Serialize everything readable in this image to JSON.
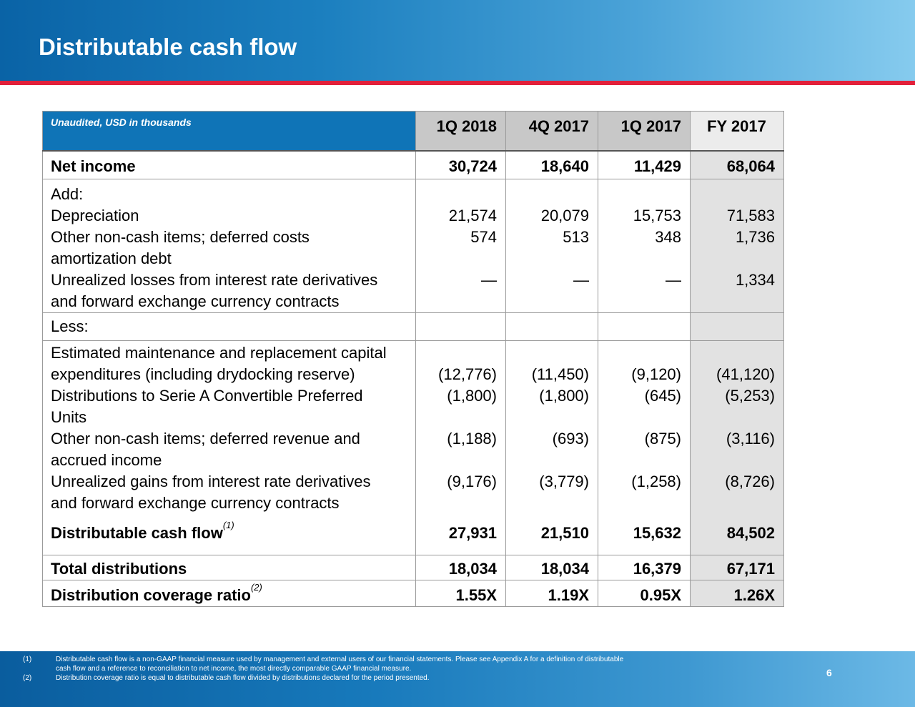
{
  "title": "Distributable cash flow",
  "table": {
    "note": "Unaudited, USD in thousands",
    "columns": [
      "1Q 2018",
      "4Q 2017",
      "1Q 2017",
      "FY 2017"
    ],
    "net_income": {
      "label": "Net income",
      "values": [
        "30,724",
        "18,640",
        "11,429",
        "68,064"
      ]
    },
    "add_label": "Add:",
    "add_rows": [
      {
        "label": "Depreciation",
        "values": [
          "21,574",
          "20,079",
          "15,753",
          "71,583"
        ]
      },
      {
        "label": "Other non-cash items; deferred costs",
        "label2": "amortization debt",
        "values": [
          "574",
          "513",
          "348",
          "1,736"
        ]
      },
      {
        "label": "Unrealized losses from interest rate derivatives",
        "label2": "and forward exchange currency contracts",
        "values": [
          "—",
          "—",
          "—",
          "1,334"
        ]
      }
    ],
    "less_label": "Less:",
    "less_rows": [
      {
        "label": "Estimated maintenance and replacement capital",
        "label2": "expenditures (including drydocking reserve)",
        "values": [
          "(12,776)",
          "(11,450)",
          "(9,120)",
          "(41,120)"
        ]
      },
      {
        "label": "Distributions to Serie A Convertible Preferred",
        "label2": "Units",
        "values": [
          "(1,800)",
          "(1,800)",
          "(645)",
          "(5,253)"
        ]
      },
      {
        "label": "Other non-cash items; deferred revenue and",
        "label2": "accrued income",
        "values": [
          "(1,188)",
          "(693)",
          "(875)",
          "(3,116)"
        ]
      },
      {
        "label": "Unrealized gains from interest rate derivatives",
        "label2": "and forward exchange currency contracts",
        "values": [
          "(9,176)",
          "(3,779)",
          "(1,258)",
          "(8,726)"
        ]
      }
    ],
    "dcf": {
      "label": "Distributable cash flow",
      "footnote": "(1)",
      "values": [
        "27,931",
        "21,510",
        "15,632",
        "84,502"
      ]
    },
    "total_distributions": {
      "label": "Total distributions",
      "values": [
        "18,034",
        "18,034",
        "16,379",
        "67,171"
      ]
    },
    "coverage": {
      "label": "Distribution coverage ratio",
      "footnote": "(2)",
      "values": [
        "1.55X",
        "1.19X",
        "0.95X",
        "1.26X"
      ]
    }
  },
  "footnotes": [
    {
      "num": "(1)",
      "text": "Distributable cash flow is a non-GAAP financial measure used by management and external users of our financial statements. Please see Appendix A for a definition of distributable",
      "text2": "cash flow and a reference to reconciliation to net income, the most directly comparable GAAP financial measure."
    },
    {
      "num": "(2)",
      "text": "Distribution coverage ratio is equal to distributable cash flow divided by distributions declared for the period presented."
    }
  ],
  "page_number": "6",
  "colors": {
    "header_blue": "#0a63a6",
    "accent_red": "#e2203a",
    "table_header_blue": "#0f74b7",
    "shade_gray": "#e2e2e2"
  }
}
